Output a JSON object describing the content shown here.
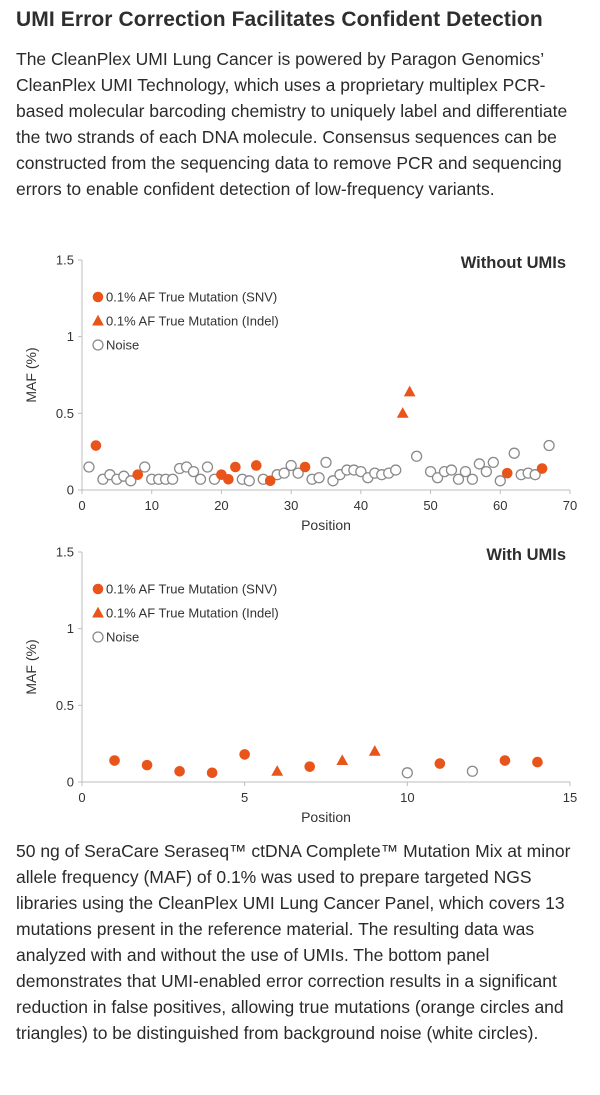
{
  "heading": "UMI Error Correction Facilitates Confident Detection",
  "intro": "The CleanPlex UMI Lung Cancer is powered by Paragon Genomics’ CleanPlex UMI Technology, which uses a proprietary multiplex PCR-based molecular barcoding chemistry to uniquely label and differentiate the two strands of each DNA molecule. Consensus sequences can be constructed from the sequencing data to remove PCR and sequencing errors to enable confident detection of low-frequency variants.",
  "caption": "50 ng of SeraCare Seraseq™ ctDNA Complete™ Mutation Mix at minor allele frequency (MAF) of 0.1% was used to prepare targeted NGS libraries using the CleanPlex UMI Lung Cancer Panel, which covers 13 mutations present in the reference material. The resulting data was analyzed with and without the use of UMIs. The bottom panel demonstrates that UMI-enabled error correction results in a significant reduction in false positives, allowing true mutations (orange circles and triangles) to be distinguished from background noise (white circles).",
  "colors": {
    "mutation": "#e8541a",
    "noise_stroke": "#8a8a8a",
    "axis": "#bdbdbd",
    "text": "#333333"
  },
  "chart_data": [
    {
      "type": "scatter",
      "title": "Without UMIs",
      "xlabel": "Position",
      "ylabel": "MAF (%)",
      "xlim": [
        0,
        70
      ],
      "ylim": [
        0,
        1.5
      ],
      "xticks": [
        "0",
        "10",
        "20",
        "30",
        "40",
        "50",
        "60",
        "70"
      ],
      "yticks": [
        "0",
        "0.5",
        "1",
        "1.5"
      ],
      "legend_position": "top-left",
      "series": [
        {
          "name": "0.1% AF True Mutation (SNV)",
          "marker": "circle-filled",
          "points": [
            [
              2,
              0.29
            ],
            [
              8,
              0.1
            ],
            [
              20,
              0.1
            ],
            [
              21,
              0.07
            ],
            [
              22,
              0.15
            ],
            [
              25,
              0.16
            ],
            [
              27,
              0.06
            ],
            [
              32,
              0.15
            ],
            [
              61,
              0.11
            ],
            [
              66,
              0.14
            ]
          ]
        },
        {
          "name": "0.1% AF True Mutation (Indel)",
          "marker": "triangle",
          "points": [
            [
              46,
              0.5
            ],
            [
              47,
              0.64
            ]
          ]
        },
        {
          "name": "Noise",
          "marker": "circle-open",
          "points": [
            [
              1,
              0.15
            ],
            [
              3,
              0.07
            ],
            [
              4,
              0.1
            ],
            [
              5,
              0.07
            ],
            [
              6,
              0.09
            ],
            [
              7,
              0.06
            ],
            [
              9,
              0.15
            ],
            [
              10,
              0.07
            ],
            [
              11,
              0.07
            ],
            [
              12,
              0.07
            ],
            [
              13,
              0.07
            ],
            [
              14,
              0.14
            ],
            [
              15,
              0.15
            ],
            [
              16,
              0.12
            ],
            [
              17,
              0.07
            ],
            [
              18,
              0.15
            ],
            [
              19,
              0.07
            ],
            [
              23,
              0.07
            ],
            [
              24,
              0.06
            ],
            [
              26,
              0.07
            ],
            [
              28,
              0.1
            ],
            [
              29,
              0.11
            ],
            [
              30,
              0.16
            ],
            [
              31,
              0.11
            ],
            [
              33,
              0.07
            ],
            [
              34,
              0.08
            ],
            [
              35,
              0.18
            ],
            [
              36,
              0.06
            ],
            [
              37,
              0.1
            ],
            [
              38,
              0.13
            ],
            [
              39,
              0.13
            ],
            [
              40,
              0.12
            ],
            [
              41,
              0.08
            ],
            [
              42,
              0.11
            ],
            [
              43,
              0.1
            ],
            [
              44,
              0.11
            ],
            [
              45,
              0.13
            ],
            [
              48,
              0.22
            ],
            [
              50,
              0.12
            ],
            [
              51,
              0.08
            ],
            [
              52,
              0.12
            ],
            [
              53,
              0.13
            ],
            [
              54,
              0.07
            ],
            [
              55,
              0.12
            ],
            [
              56,
              0.07
            ],
            [
              57,
              0.17
            ],
            [
              58,
              0.12
            ],
            [
              59,
              0.18
            ],
            [
              60,
              0.06
            ],
            [
              62,
              0.24
            ],
            [
              63,
              0.1
            ],
            [
              64,
              0.11
            ],
            [
              65,
              0.1
            ],
            [
              67,
              0.29
            ]
          ]
        }
      ]
    },
    {
      "type": "scatter",
      "title": "With UMIs",
      "xlabel": "Position",
      "ylabel": "MAF (%)",
      "xlim": [
        0,
        15
      ],
      "ylim": [
        0,
        1.5
      ],
      "xticks": [
        "0",
        "5",
        "10",
        "15"
      ],
      "yticks": [
        "0",
        "0.5",
        "1",
        "1.5"
      ],
      "legend_position": "top-left",
      "series": [
        {
          "name": "0.1% AF True Mutation (SNV)",
          "marker": "circle-filled",
          "points": [
            [
              1,
              0.14
            ],
            [
              2,
              0.11
            ],
            [
              3,
              0.07
            ],
            [
              4,
              0.06
            ],
            [
              5,
              0.18
            ],
            [
              7,
              0.1
            ],
            [
              11,
              0.12
            ],
            [
              13,
              0.14
            ],
            [
              14,
              0.13
            ]
          ]
        },
        {
          "name": "0.1% AF True Mutation (Indel)",
          "marker": "triangle",
          "points": [
            [
              6,
              0.07
            ],
            [
              8,
              0.14
            ],
            [
              9,
              0.2
            ]
          ]
        },
        {
          "name": "Noise",
          "marker": "circle-open",
          "points": [
            [
              10,
              0.06
            ],
            [
              12,
              0.07
            ]
          ]
        }
      ]
    }
  ]
}
